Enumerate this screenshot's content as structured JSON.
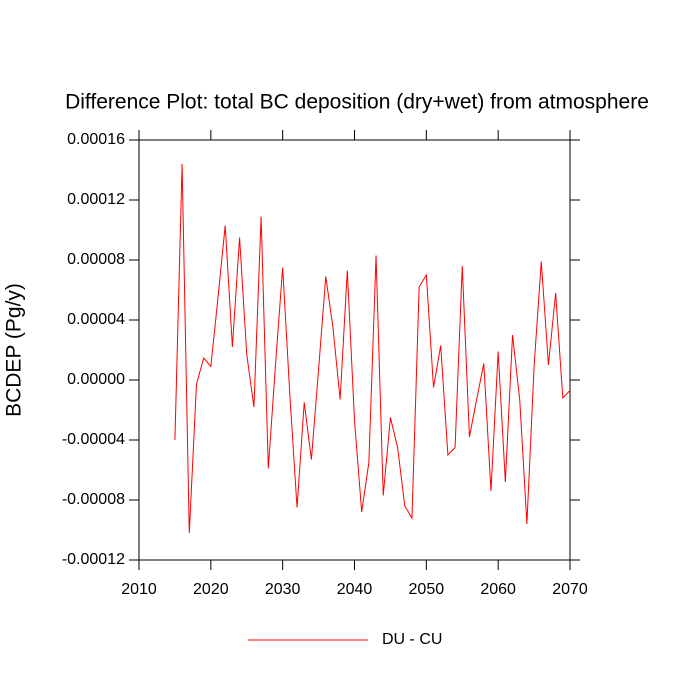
{
  "chart_data": {
    "type": "line",
    "title": "Difference Plot: total BC deposition (dry+wet) from atmosphere",
    "y_label": "BCDEP  (Pg/y)",
    "x": [
      2015,
      2016,
      2017,
      2018,
      2019,
      2020,
      2021,
      2022,
      2023,
      2024,
      2025,
      2026,
      2027,
      2028,
      2029,
      2030,
      2031,
      2032,
      2033,
      2034,
      2035,
      2036,
      2037,
      2038,
      2039,
      2040,
      2041,
      2042,
      2043,
      2044,
      2045,
      2046,
      2047,
      2048,
      2049,
      2050,
      2051,
      2052,
      2053,
      2054,
      2055,
      2056,
      2057,
      2058,
      2059,
      2060,
      2061,
      2062,
      2063,
      2064,
      2065,
      2066,
      2067,
      2068,
      2069,
      2070
    ],
    "series": [
      {
        "name": "DU - CU",
        "color": "#ff0000",
        "values": [
          -4e-05,
          0.000144,
          -0.000102,
          -3e-06,
          1.47e-05,
          9e-06,
          5.5e-05,
          0.000103,
          2.2e-05,
          9.5e-05,
          1.7e-05,
          -1.8e-05,
          0.000109,
          -5.9e-05,
          1e-05,
          7.5e-05,
          -1e-05,
          -8.5e-05,
          -1.5e-05,
          -5.3e-05,
          7e-06,
          6.9e-05,
          3.5e-05,
          -1.3e-05,
          7.3e-05,
          -2.7e-05,
          -8.8e-05,
          -5.5e-05,
          8.3e-05,
          -7.7e-05,
          -2.5e-05,
          -4.5e-05,
          -8.4e-05,
          -9.2e-05,
          6.2e-05,
          7e-05,
          -5e-06,
          2.3e-05,
          -5e-05,
          -4.5e-05,
          7.6e-05,
          -3.8e-05,
          -1.3e-05,
          1.1e-05,
          -7.4e-05,
          1.9e-05,
          -6.8e-05,
          3e-05,
          -1.3e-05,
          -9.6e-05,
          9e-06,
          7.9e-05,
          1e-05,
          5.8e-05,
          -1.2e-05,
          -7e-06
        ]
      }
    ],
    "xlim": [
      2010,
      2070
    ],
    "xticks": [
      2010,
      2020,
      2030,
      2040,
      2050,
      2060,
      2070
    ],
    "ylim": [
      -0.00012,
      0.00016
    ],
    "yticks": [
      {
        "value": -0.00012,
        "label": "-0.00012"
      },
      {
        "value": -8e-05,
        "label": "-0.00008"
      },
      {
        "value": -4e-05,
        "label": "-0.00004"
      },
      {
        "value": 0,
        "label": "0.00000"
      },
      {
        "value": 4e-05,
        "label": "0.00004"
      },
      {
        "value": 8e-05,
        "label": "0.00008"
      },
      {
        "value": 0.00012,
        "label": "0.00012"
      },
      {
        "value": 0.00016,
        "label": "0.00016"
      }
    ],
    "legend": "bottom"
  }
}
